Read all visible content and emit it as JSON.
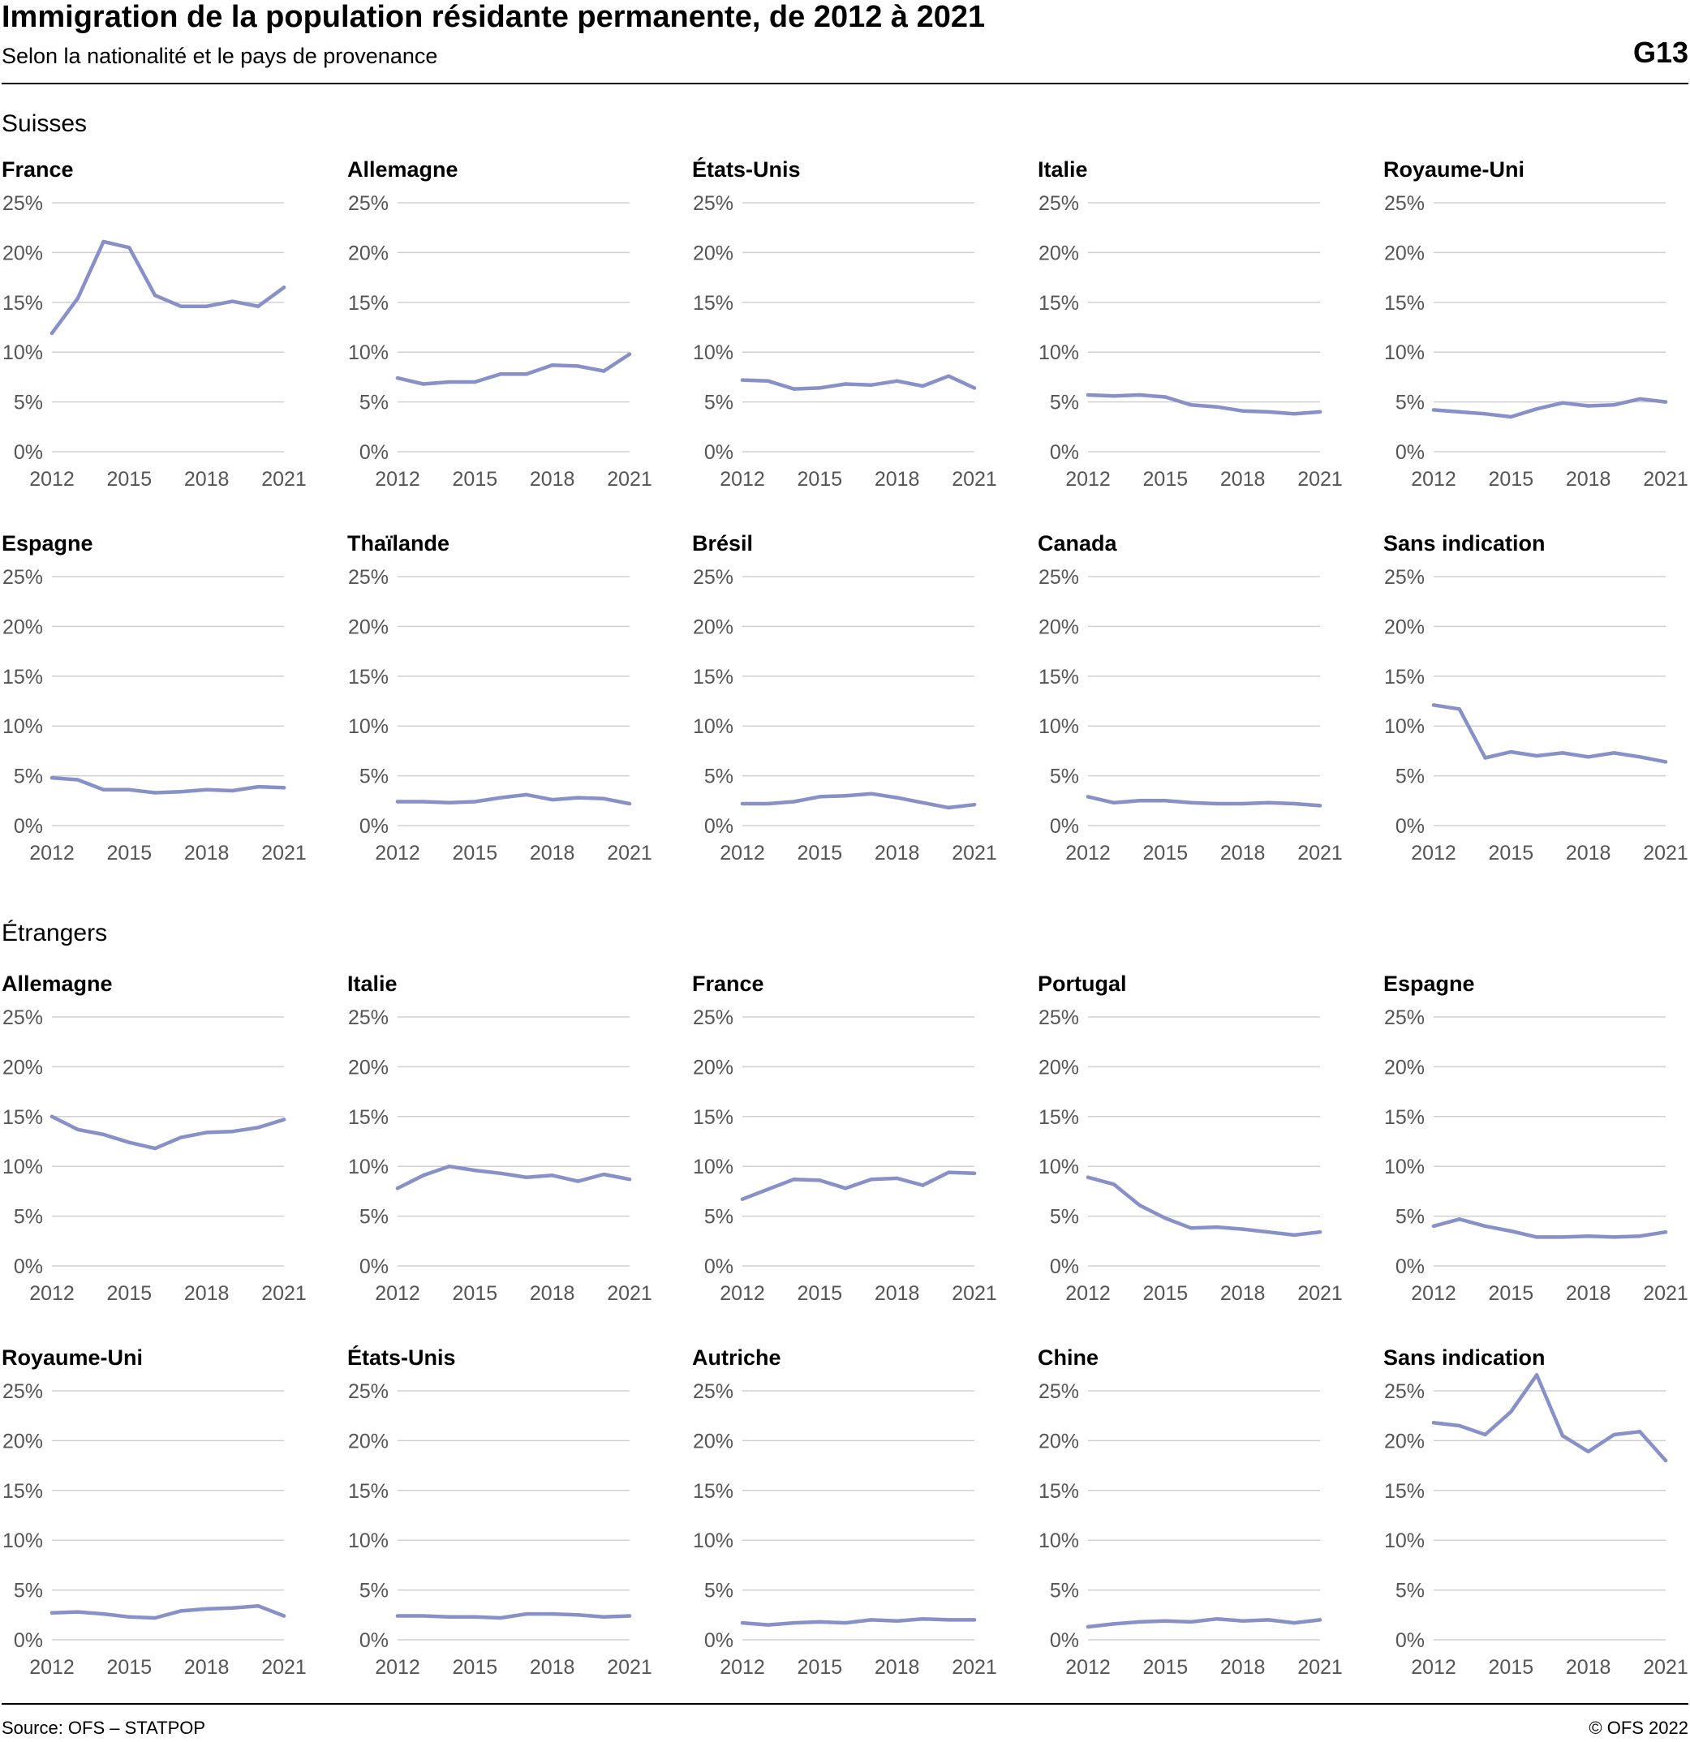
{
  "header": {
    "title": "Immigration de la population résidante permanente, de 2012 à 2021",
    "subtitle": "Selon la nationalité et le pays de provenance",
    "code": "G13"
  },
  "footer": {
    "source": "Source: OFS – STATPOP",
    "copyright": "© OFS 2022"
  },
  "colors": {
    "line": "#8891c7",
    "grid": "#d0d0d0",
    "axis_text": "#555555"
  },
  "groups": [
    "Suisses",
    "Étrangers"
  ],
  "chart_data": [
    {
      "type": "line",
      "group": "Suisses",
      "title": "France",
      "x": [
        2012,
        2013,
        2014,
        2015,
        2016,
        2017,
        2018,
        2019,
        2020,
        2021
      ],
      "values": [
        11.9,
        15.4,
        21.1,
        20.5,
        15.7,
        14.6,
        14.6,
        15.1,
        14.6,
        16.5
      ],
      "ylim": [
        0,
        25
      ],
      "yticks": [
        "0%",
        "5%",
        "10%",
        "15%",
        "20%",
        "25%"
      ],
      "xticks": [
        "2012",
        "2015",
        "2018",
        "2021"
      ]
    },
    {
      "type": "line",
      "group": "Suisses",
      "title": "Allemagne",
      "x": [
        2012,
        2013,
        2014,
        2015,
        2016,
        2017,
        2018,
        2019,
        2020,
        2021
      ],
      "values": [
        7.4,
        6.8,
        7.0,
        7.0,
        7.8,
        7.8,
        8.7,
        8.6,
        8.1,
        9.8
      ],
      "ylim": [
        0,
        25
      ],
      "yticks": [
        "0%",
        "5%",
        "10%",
        "15%",
        "20%",
        "25%"
      ],
      "xticks": [
        "2012",
        "2015",
        "2018",
        "2021"
      ]
    },
    {
      "type": "line",
      "group": "Suisses",
      "title": "États-Unis",
      "x": [
        2012,
        2013,
        2014,
        2015,
        2016,
        2017,
        2018,
        2019,
        2020,
        2021
      ],
      "values": [
        7.2,
        7.1,
        6.3,
        6.4,
        6.8,
        6.7,
        7.1,
        6.6,
        7.6,
        6.4
      ],
      "ylim": [
        0,
        25
      ],
      "yticks": [
        "0%",
        "5%",
        "10%",
        "15%",
        "20%",
        "25%"
      ],
      "xticks": [
        "2012",
        "2015",
        "2018",
        "2021"
      ]
    },
    {
      "type": "line",
      "group": "Suisses",
      "title": "Italie",
      "x": [
        2012,
        2013,
        2014,
        2015,
        2016,
        2017,
        2018,
        2019,
        2020,
        2021
      ],
      "values": [
        5.7,
        5.6,
        5.7,
        5.5,
        4.7,
        4.5,
        4.1,
        4.0,
        3.8,
        4.0
      ],
      "ylim": [
        0,
        25
      ],
      "yticks": [
        "0%",
        "5%",
        "10%",
        "15%",
        "20%",
        "25%"
      ],
      "xticks": [
        "2012",
        "2015",
        "2018",
        "2021"
      ]
    },
    {
      "type": "line",
      "group": "Suisses",
      "title": "Royaume-Uni",
      "x": [
        2012,
        2013,
        2014,
        2015,
        2016,
        2017,
        2018,
        2019,
        2020,
        2021
      ],
      "values": [
        4.2,
        4.0,
        3.8,
        3.5,
        4.3,
        4.9,
        4.6,
        4.7,
        5.3,
        5.0
      ],
      "ylim": [
        0,
        25
      ],
      "yticks": [
        "0%",
        "5%",
        "10%",
        "15%",
        "20%",
        "25%"
      ],
      "xticks": [
        "2012",
        "2015",
        "2018",
        "2021"
      ]
    },
    {
      "type": "line",
      "group": "Suisses",
      "title": "Espagne",
      "x": [
        2012,
        2013,
        2014,
        2015,
        2016,
        2017,
        2018,
        2019,
        2020,
        2021
      ],
      "values": [
        4.8,
        4.6,
        3.6,
        3.6,
        3.3,
        3.4,
        3.6,
        3.5,
        3.9,
        3.8
      ],
      "ylim": [
        0,
        25
      ],
      "yticks": [
        "0%",
        "5%",
        "10%",
        "15%",
        "20%",
        "25%"
      ],
      "xticks": [
        "2012",
        "2015",
        "2018",
        "2021"
      ]
    },
    {
      "type": "line",
      "group": "Suisses",
      "title": "Thaïlande",
      "x": [
        2012,
        2013,
        2014,
        2015,
        2016,
        2017,
        2018,
        2019,
        2020,
        2021
      ],
      "values": [
        2.4,
        2.4,
        2.3,
        2.4,
        2.8,
        3.1,
        2.6,
        2.8,
        2.7,
        2.2
      ],
      "ylim": [
        0,
        25
      ],
      "yticks": [
        "0%",
        "5%",
        "10%",
        "15%",
        "20%",
        "25%"
      ],
      "xticks": [
        "2012",
        "2015",
        "2018",
        "2021"
      ]
    },
    {
      "type": "line",
      "group": "Suisses",
      "title": "Brésil",
      "x": [
        2012,
        2013,
        2014,
        2015,
        2016,
        2017,
        2018,
        2019,
        2020,
        2021
      ],
      "values": [
        2.2,
        2.2,
        2.4,
        2.9,
        3.0,
        3.2,
        2.8,
        2.3,
        1.8,
        2.1
      ],
      "ylim": [
        0,
        25
      ],
      "yticks": [
        "0%",
        "5%",
        "10%",
        "15%",
        "20%",
        "25%"
      ],
      "xticks": [
        "2012",
        "2015",
        "2018",
        "2021"
      ]
    },
    {
      "type": "line",
      "group": "Suisses",
      "title": "Canada",
      "x": [
        2012,
        2013,
        2014,
        2015,
        2016,
        2017,
        2018,
        2019,
        2020,
        2021
      ],
      "values": [
        2.9,
        2.3,
        2.5,
        2.5,
        2.3,
        2.2,
        2.2,
        2.3,
        2.2,
        2.0
      ],
      "ylim": [
        0,
        25
      ],
      "yticks": [
        "0%",
        "5%",
        "10%",
        "15%",
        "20%",
        "25%"
      ],
      "xticks": [
        "2012",
        "2015",
        "2018",
        "2021"
      ]
    },
    {
      "type": "line",
      "group": "Suisses",
      "title": "Sans indication",
      "x": [
        2012,
        2013,
        2014,
        2015,
        2016,
        2017,
        2018,
        2019,
        2020,
        2021
      ],
      "values": [
        12.1,
        11.7,
        6.8,
        7.4,
        7.0,
        7.3,
        6.9,
        7.3,
        6.9,
        6.4
      ],
      "ylim": [
        0,
        25
      ],
      "yticks": [
        "0%",
        "5%",
        "10%",
        "15%",
        "20%",
        "25%"
      ],
      "xticks": [
        "2012",
        "2015",
        "2018",
        "2021"
      ]
    },
    {
      "type": "line",
      "group": "Étrangers",
      "title": "Allemagne",
      "x": [
        2012,
        2013,
        2014,
        2015,
        2016,
        2017,
        2018,
        2019,
        2020,
        2021
      ],
      "values": [
        15.0,
        13.7,
        13.2,
        12.4,
        11.8,
        12.9,
        13.4,
        13.5,
        13.9,
        14.7
      ],
      "ylim": [
        0,
        25
      ],
      "yticks": [
        "0%",
        "5%",
        "10%",
        "15%",
        "20%",
        "25%"
      ],
      "xticks": [
        "2012",
        "2015",
        "2018",
        "2021"
      ]
    },
    {
      "type": "line",
      "group": "Étrangers",
      "title": "Italie",
      "x": [
        2012,
        2013,
        2014,
        2015,
        2016,
        2017,
        2018,
        2019,
        2020,
        2021
      ],
      "values": [
        7.8,
        9.1,
        10.0,
        9.6,
        9.3,
        8.9,
        9.1,
        8.5,
        9.2,
        8.7
      ],
      "ylim": [
        0,
        25
      ],
      "yticks": [
        "0%",
        "5%",
        "10%",
        "15%",
        "20%",
        "25%"
      ],
      "xticks": [
        "2012",
        "2015",
        "2018",
        "2021"
      ]
    },
    {
      "type": "line",
      "group": "Étrangers",
      "title": "France",
      "x": [
        2012,
        2013,
        2014,
        2015,
        2016,
        2017,
        2018,
        2019,
        2020,
        2021
      ],
      "values": [
        6.7,
        7.7,
        8.7,
        8.6,
        7.8,
        8.7,
        8.8,
        8.1,
        9.4,
        9.3
      ],
      "ylim": [
        0,
        25
      ],
      "yticks": [
        "0%",
        "5%",
        "10%",
        "15%",
        "20%",
        "25%"
      ],
      "xticks": [
        "2012",
        "2015",
        "2018",
        "2021"
      ]
    },
    {
      "type": "line",
      "group": "Étrangers",
      "title": "Portugal",
      "x": [
        2012,
        2013,
        2014,
        2015,
        2016,
        2017,
        2018,
        2019,
        2020,
        2021
      ],
      "values": [
        8.9,
        8.2,
        6.1,
        4.8,
        3.8,
        3.9,
        3.7,
        3.4,
        3.1,
        3.4
      ],
      "ylim": [
        0,
        25
      ],
      "yticks": [
        "0%",
        "5%",
        "10%",
        "15%",
        "20%",
        "25%"
      ],
      "xticks": [
        "2012",
        "2015",
        "2018",
        "2021"
      ]
    },
    {
      "type": "line",
      "group": "Étrangers",
      "title": "Espagne",
      "x": [
        2012,
        2013,
        2014,
        2015,
        2016,
        2017,
        2018,
        2019,
        2020,
        2021
      ],
      "values": [
        4.0,
        4.7,
        4.0,
        3.5,
        2.9,
        2.9,
        3.0,
        2.9,
        3.0,
        3.4
      ],
      "ylim": [
        0,
        25
      ],
      "yticks": [
        "0%",
        "5%",
        "10%",
        "15%",
        "20%",
        "25%"
      ],
      "xticks": [
        "2012",
        "2015",
        "2018",
        "2021"
      ]
    },
    {
      "type": "line",
      "group": "Étrangers",
      "title": "Royaume-Uni",
      "x": [
        2012,
        2013,
        2014,
        2015,
        2016,
        2017,
        2018,
        2019,
        2020,
        2021
      ],
      "values": [
        2.7,
        2.8,
        2.6,
        2.3,
        2.2,
        2.9,
        3.1,
        3.2,
        3.4,
        2.4
      ],
      "ylim": [
        0,
        25
      ],
      "yticks": [
        "0%",
        "5%",
        "10%",
        "15%",
        "20%",
        "25%"
      ],
      "xticks": [
        "2012",
        "2015",
        "2018",
        "2021"
      ]
    },
    {
      "type": "line",
      "group": "Étrangers",
      "title": "États-Unis",
      "x": [
        2012,
        2013,
        2014,
        2015,
        2016,
        2017,
        2018,
        2019,
        2020,
        2021
      ],
      "values": [
        2.4,
        2.4,
        2.3,
        2.3,
        2.2,
        2.6,
        2.6,
        2.5,
        2.3,
        2.4
      ],
      "ylim": [
        0,
        25
      ],
      "yticks": [
        "0%",
        "5%",
        "10%",
        "15%",
        "20%",
        "25%"
      ],
      "xticks": [
        "2012",
        "2015",
        "2018",
        "2021"
      ]
    },
    {
      "type": "line",
      "group": "Étrangers",
      "title": "Autriche",
      "x": [
        2012,
        2013,
        2014,
        2015,
        2016,
        2017,
        2018,
        2019,
        2020,
        2021
      ],
      "values": [
        1.7,
        1.5,
        1.7,
        1.8,
        1.7,
        2.0,
        1.9,
        2.1,
        2.0,
        2.0
      ],
      "ylim": [
        0,
        25
      ],
      "yticks": [
        "0%",
        "5%",
        "10%",
        "15%",
        "20%",
        "25%"
      ],
      "xticks": [
        "2012",
        "2015",
        "2018",
        "2021"
      ]
    },
    {
      "type": "line",
      "group": "Étrangers",
      "title": "Chine",
      "x": [
        2012,
        2013,
        2014,
        2015,
        2016,
        2017,
        2018,
        2019,
        2020,
        2021
      ],
      "values": [
        1.3,
        1.6,
        1.8,
        1.9,
        1.8,
        2.1,
        1.9,
        2.0,
        1.7,
        2.0
      ],
      "ylim": [
        0,
        25
      ],
      "yticks": [
        "0%",
        "5%",
        "10%",
        "15%",
        "20%",
        "25%"
      ],
      "xticks": [
        "2012",
        "2015",
        "2018",
        "2021"
      ]
    },
    {
      "type": "line",
      "group": "Étrangers",
      "title": "Sans indication",
      "x": [
        2012,
        2013,
        2014,
        2015,
        2016,
        2017,
        2018,
        2019,
        2020,
        2021
      ],
      "values": [
        21.8,
        21.5,
        20.6,
        22.9,
        26.6,
        20.5,
        18.9,
        20.6,
        20.9,
        18.0
      ],
      "ylim": [
        0,
        25
      ],
      "yticks": [
        "0%",
        "5%",
        "10%",
        "15%",
        "20%",
        "25%"
      ],
      "xticks": [
        "2012",
        "2015",
        "2018",
        "2021"
      ]
    }
  ]
}
